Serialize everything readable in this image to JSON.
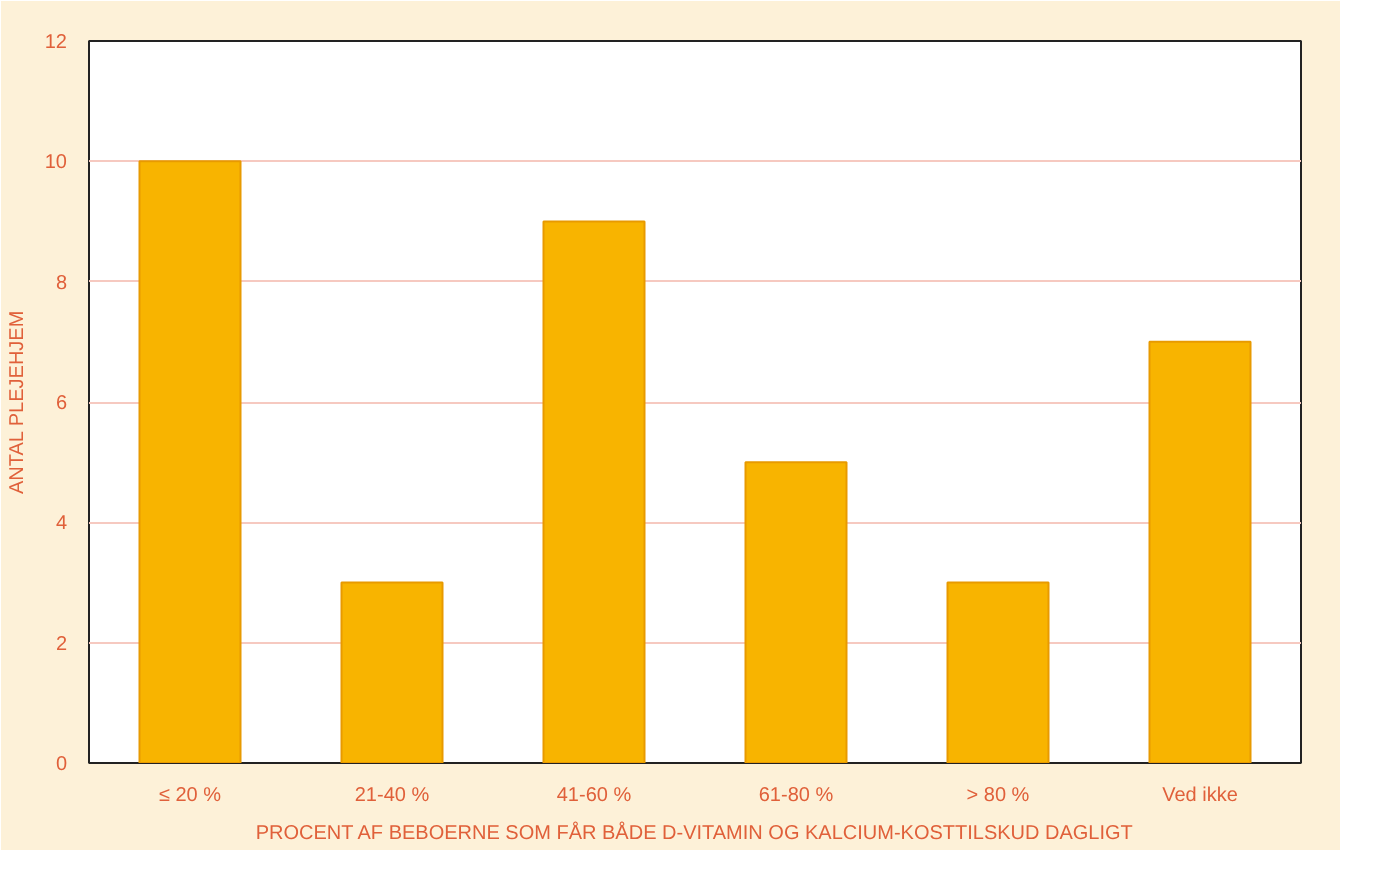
{
  "chart_data": {
    "type": "bar",
    "xlabel": "PROCENT AF BEBOERNE SOM FÅR BÅDE D-VITAMIN OG KALCIUM-KOSTTILSKUD DAGLIGT",
    "ylabel": "ANTAL PLEJEHJEM",
    "categories": [
      "≤ 20 %",
      "21-40 %",
      "41-60 %",
      "61-80 %",
      "> 80 %",
      "Ved ikke"
    ],
    "values": [
      10,
      3,
      9,
      5,
      3,
      7
    ],
    "color": "#f8b400",
    "ylim": [
      0,
      12
    ],
    "yticks": [
      0,
      2,
      4,
      6,
      8,
      10,
      12
    ],
    "grid": "y"
  }
}
